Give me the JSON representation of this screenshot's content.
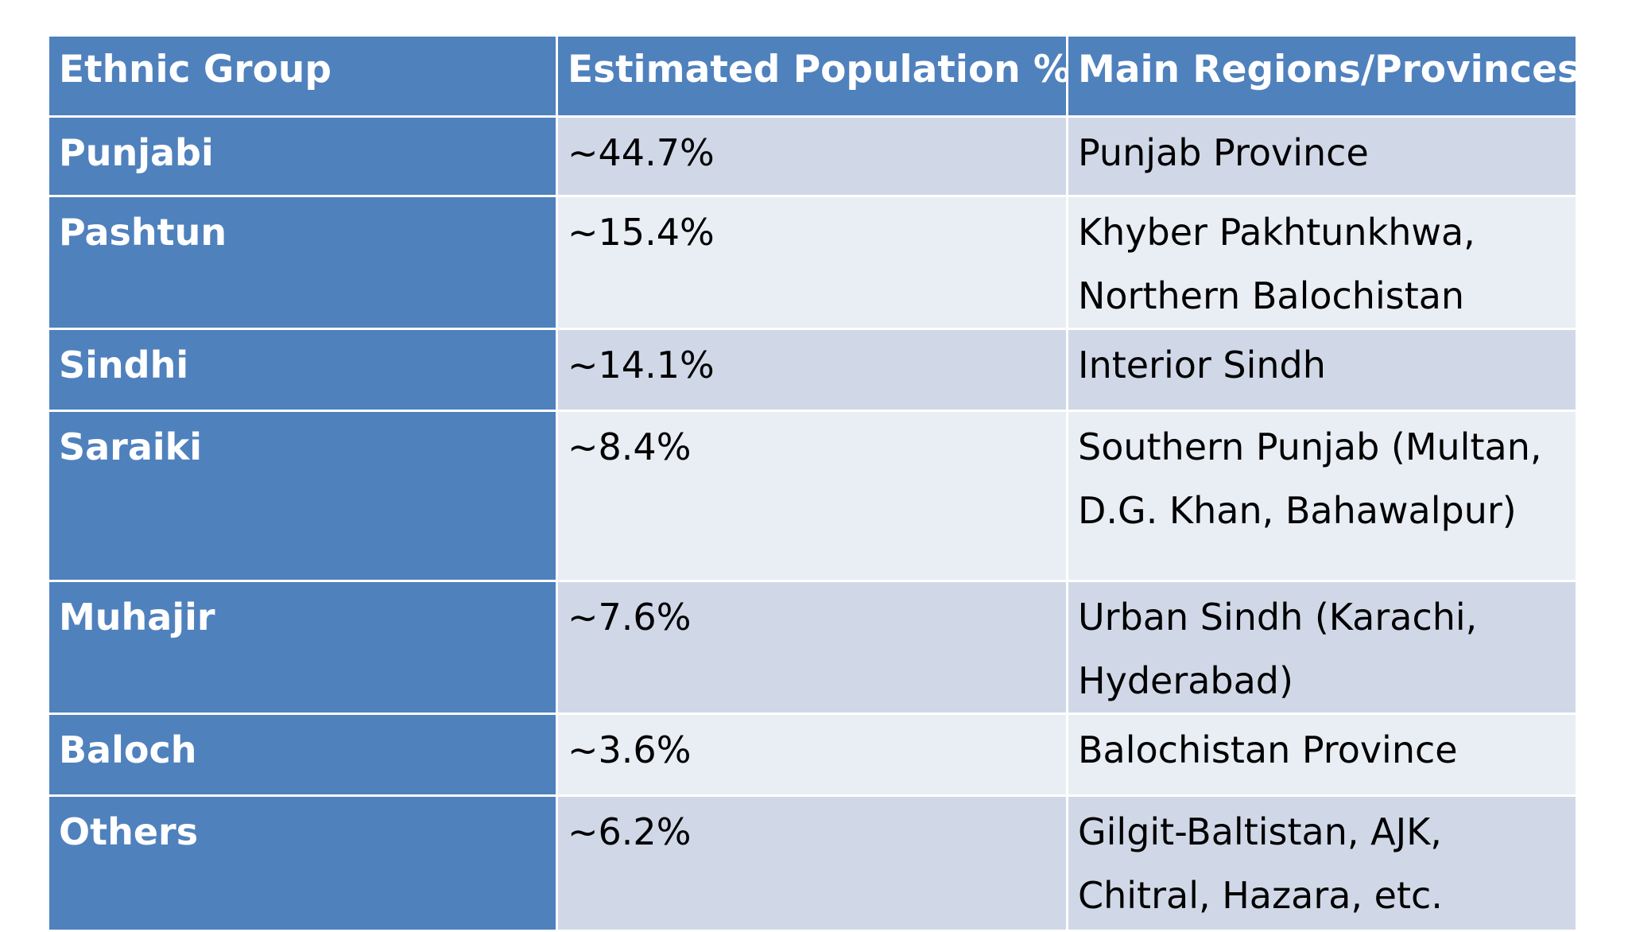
{
  "table": {
    "header": [
      "Ethnic Group",
      "Estimated Population %",
      "Main Regions/Provinces"
    ],
    "rows": [
      [
        "Punjabi",
        "~44.7%",
        "Punjab Province"
      ],
      [
        "Pashtun",
        "~15.4%",
        "Khyber Pakhtunkhwa, Northern Balochistan"
      ],
      [
        "Sindhi",
        "~14.1%",
        "Interior Sindh"
      ],
      [
        "Saraiki",
        "~8.4%",
        "Southern Punjab (Multan, D.G. Khan, Bahawalpur)"
      ],
      [
        "Muhajir",
        "~7.6%",
        "Urban Sindh (Karachi, Hyderabad)"
      ],
      [
        "Baloch",
        "~3.6%",
        "Balochistan Province"
      ],
      [
        "Others",
        "~6.2%",
        "Gilgit-Baltistan, AJK, Chitral, Hazara, etc."
      ]
    ]
  }
}
